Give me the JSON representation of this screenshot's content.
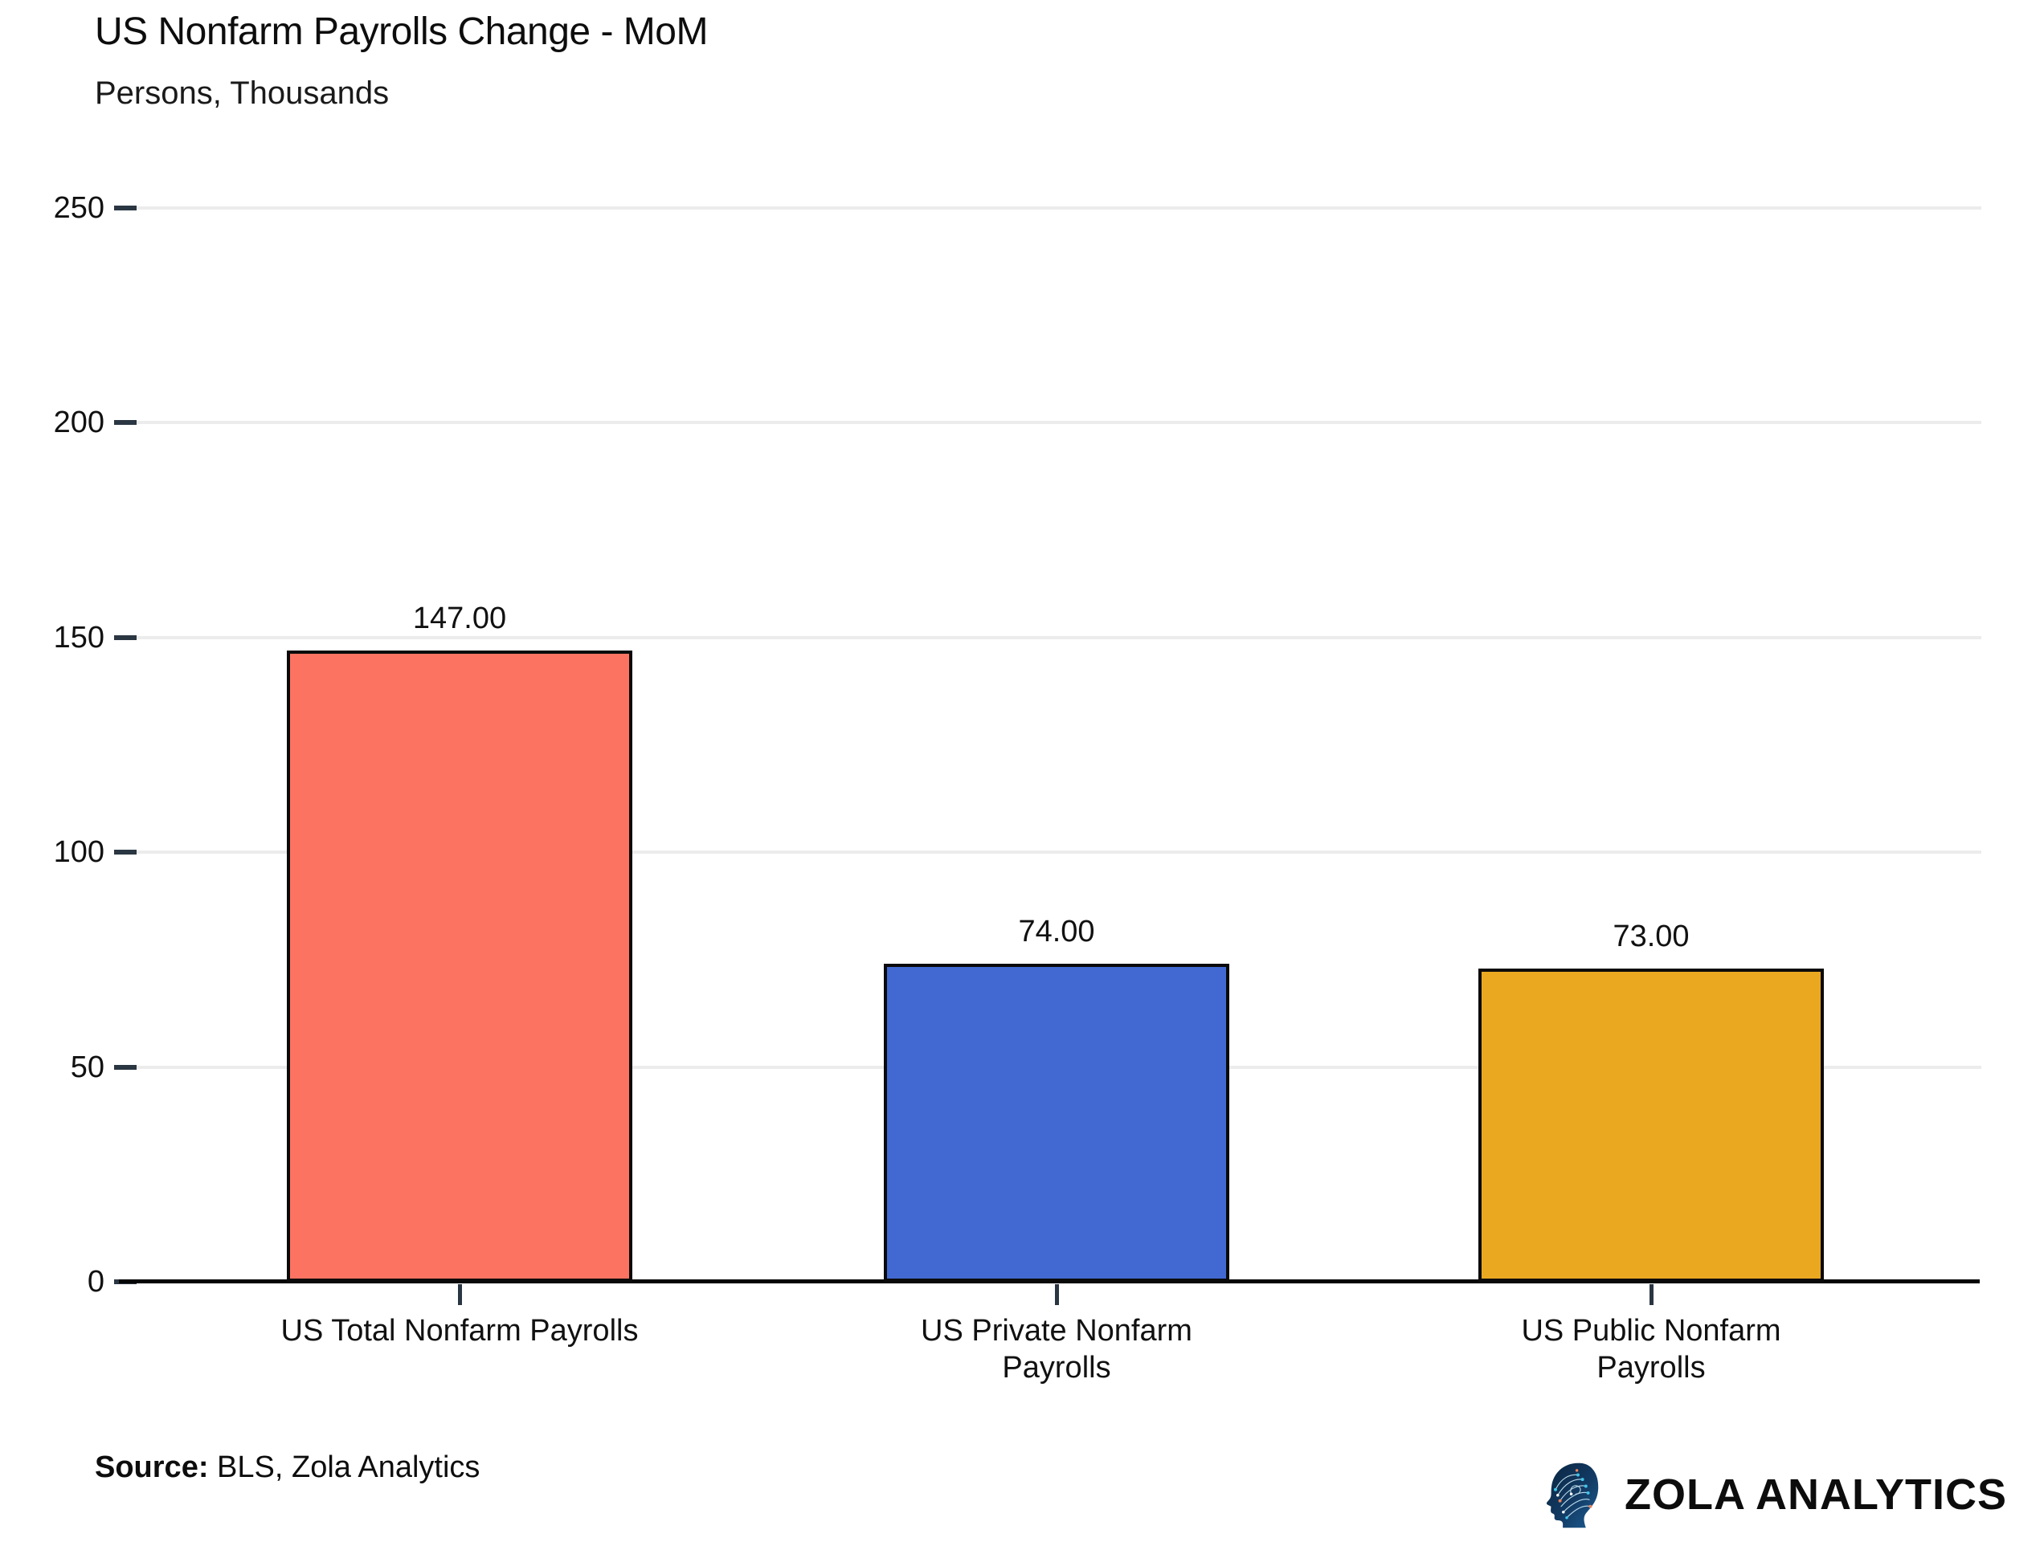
{
  "header": {
    "title": "US Nonfarm Payrolls Change - MoM",
    "subtitle": "Persons, Thousands"
  },
  "chart_data": {
    "type": "bar",
    "title": "US Nonfarm Payrolls Change - MoM",
    "subtitle": "Persons, Thousands",
    "categories": [
      "US Total Nonfarm Payrolls",
      "US Private Nonfarm\nPayrolls",
      "US Public Nonfarm\nPayrolls"
    ],
    "values": [
      147,
      74,
      73
    ],
    "value_labels": [
      "147.00",
      "74.00",
      "73.00"
    ],
    "bar_colors": [
      "#FC7361",
      "#4169D1",
      "#EAA820"
    ],
    "bar_border_color": "#0a0a0a",
    "xlabel": "",
    "ylabel": "",
    "ylim": [
      0,
      250
    ],
    "yticks": [
      0,
      50,
      100,
      150,
      200,
      250
    ],
    "grid": "horizontal",
    "legend": "none"
  },
  "footer": {
    "source_label": "Source:",
    "source_text": " BLS, Zola Analytics"
  },
  "branding": {
    "logo_text": "ZOLA ANALYTICS",
    "logo_icon": "head-circuit-icon",
    "logo_head_dark": "#0a2540",
    "logo_head_light": "#1e5f96",
    "logo_dot_cyan": "#3fc6ea",
    "logo_dot_orange": "#e8835b"
  }
}
